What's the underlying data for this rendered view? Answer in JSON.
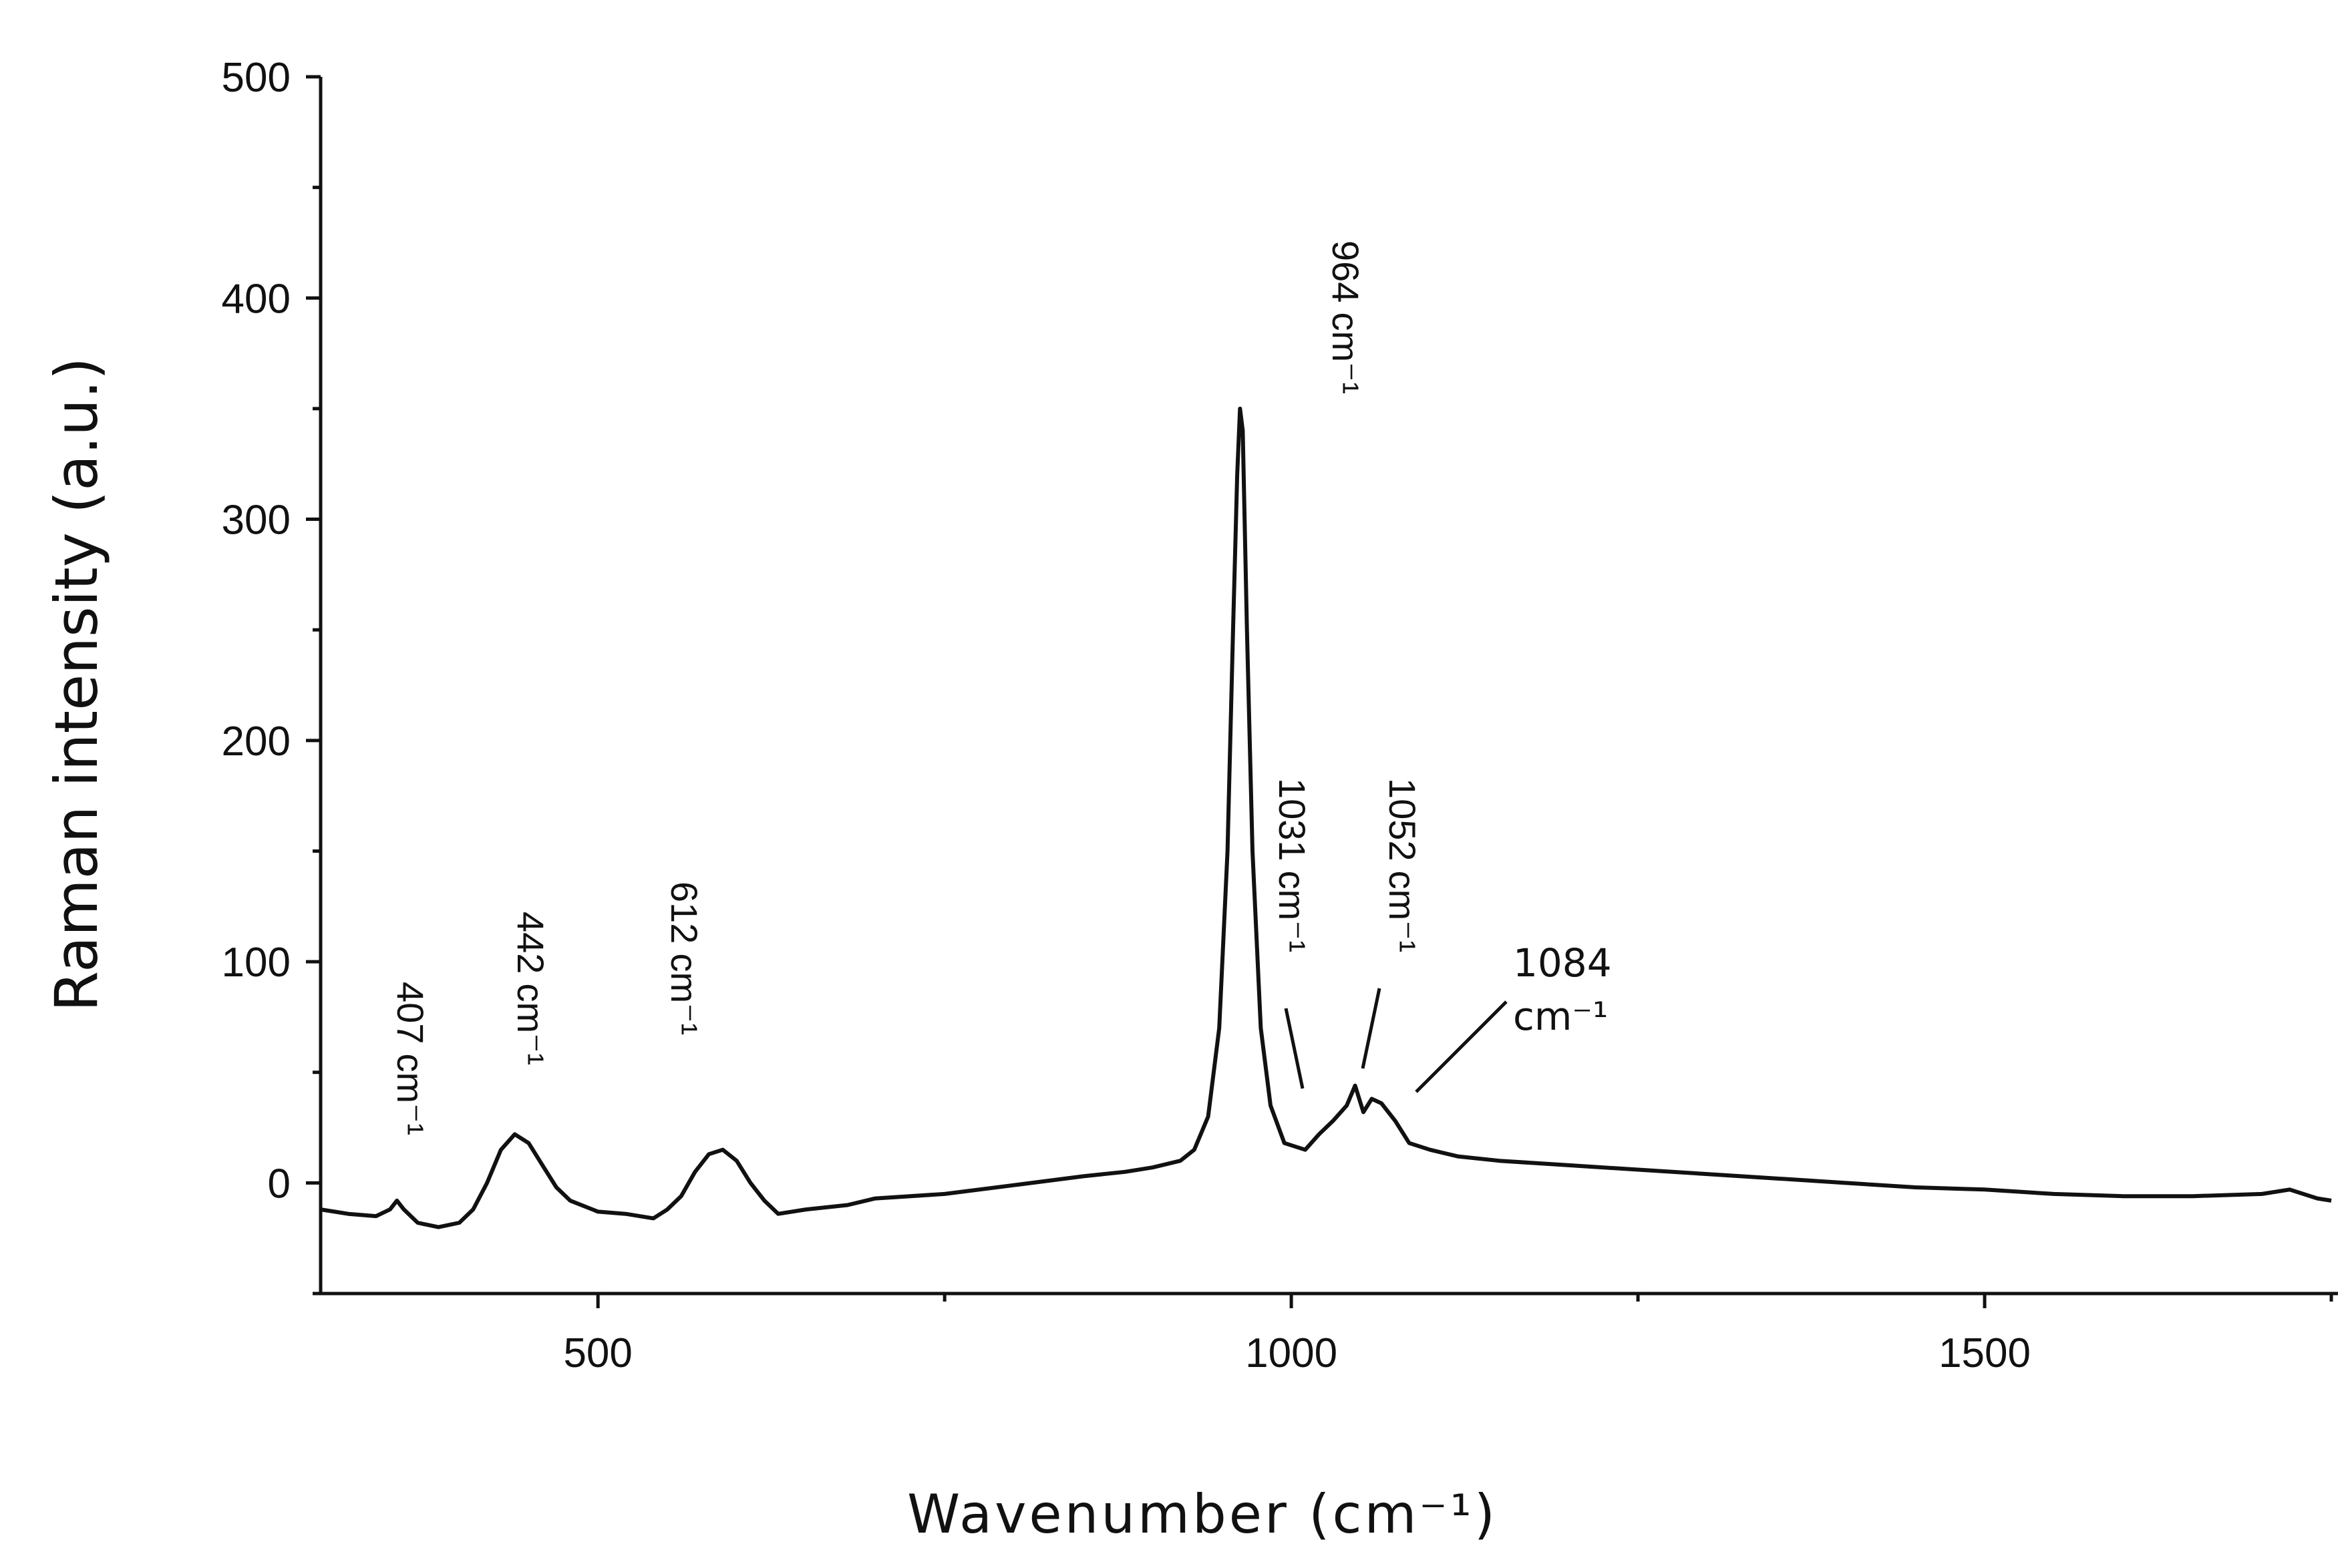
{
  "chart_data": {
    "type": "line",
    "title": "",
    "xlabel": "Wavenumber (cm⁻¹)",
    "ylabel": "Raman intensity (a.u.)",
    "xlim": [
      300,
      1750
    ],
    "ylim": [
      -50,
      500
    ],
    "xticks": [
      500,
      1000,
      1500
    ],
    "yticks": [
      0,
      100,
      200,
      300,
      400,
      500
    ],
    "xminor_step": 250,
    "yminor_step": 50,
    "grid": false,
    "legend": "none",
    "line_color": "#111111",
    "series": [
      {
        "values": [
          [
            300,
            -12
          ],
          [
            320,
            -14
          ],
          [
            340,
            -15
          ],
          [
            350,
            -12
          ],
          [
            355,
            -8
          ],
          [
            360,
            -12
          ],
          [
            370,
            -18
          ],
          [
            385,
            -20
          ],
          [
            400,
            -18
          ],
          [
            410,
            -12
          ],
          [
            420,
            0
          ],
          [
            430,
            15
          ],
          [
            440,
            22
          ],
          [
            450,
            18
          ],
          [
            460,
            8
          ],
          [
            470,
            -2
          ],
          [
            480,
            -8
          ],
          [
            500,
            -13
          ],
          [
            520,
            -14
          ],
          [
            540,
            -16
          ],
          [
            550,
            -12
          ],
          [
            560,
            -6
          ],
          [
            570,
            5
          ],
          [
            580,
            13
          ],
          [
            590,
            15
          ],
          [
            600,
            10
          ],
          [
            610,
            0
          ],
          [
            620,
            -8
          ],
          [
            630,
            -14
          ],
          [
            650,
            -12
          ],
          [
            680,
            -10
          ],
          [
            700,
            -7
          ],
          [
            750,
            -5
          ],
          [
            800,
            -1
          ],
          [
            850,
            3
          ],
          [
            880,
            5
          ],
          [
            900,
            7
          ],
          [
            920,
            10
          ],
          [
            930,
            15
          ],
          [
            940,
            30
          ],
          [
            948,
            70
          ],
          [
            954,
            150
          ],
          [
            958,
            250
          ],
          [
            961,
            320
          ],
          [
            963,
            350
          ],
          [
            965,
            340
          ],
          [
            968,
            250
          ],
          [
            972,
            150
          ],
          [
            978,
            70
          ],
          [
            985,
            35
          ],
          [
            995,
            18
          ],
          [
            1010,
            15
          ],
          [
            1020,
            22
          ],
          [
            1030,
            28
          ],
          [
            1040,
            35
          ],
          [
            1046,
            44
          ],
          [
            1052,
            32
          ],
          [
            1058,
            38
          ],
          [
            1065,
            36
          ],
          [
            1075,
            28
          ],
          [
            1085,
            18
          ],
          [
            1100,
            15
          ],
          [
            1120,
            12
          ],
          [
            1150,
            10
          ],
          [
            1200,
            8
          ],
          [
            1250,
            6
          ],
          [
            1300,
            4
          ],
          [
            1350,
            2
          ],
          [
            1400,
            0
          ],
          [
            1450,
            -2
          ],
          [
            1500,
            -3
          ],
          [
            1550,
            -5
          ],
          [
            1600,
            -6
          ],
          [
            1650,
            -6
          ],
          [
            1700,
            -5
          ],
          [
            1720,
            -3
          ],
          [
            1740,
            -7
          ],
          [
            1750,
            -8
          ]
        ]
      }
    ],
    "annotations": [
      {
        "value": "407",
        "unit": "cm⁻¹"
      },
      {
        "value": "442",
        "unit": "cm⁻¹"
      },
      {
        "value": "612",
        "unit": "cm⁻¹"
      },
      {
        "value": "964",
        "unit": "cm⁻¹"
      },
      {
        "value": "1031",
        "unit": "cm⁻¹"
      },
      {
        "value": "1052",
        "unit": "cm⁻¹"
      },
      {
        "value": "1084",
        "unit": "cm⁻¹"
      }
    ]
  }
}
